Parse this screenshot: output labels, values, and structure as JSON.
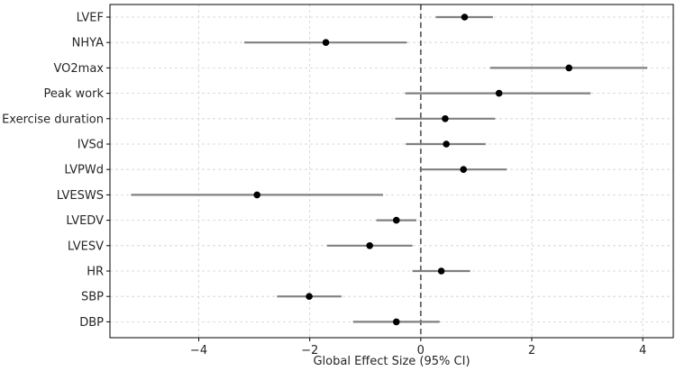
{
  "chart_data": {
    "type": "forest",
    "title": "",
    "xlabel": "Global Effect Size (95% CI)",
    "ylabel": "",
    "xlim": [
      -5.6,
      4.55
    ],
    "xticks": [
      -4,
      -2,
      0,
      2,
      4
    ],
    "xtick_labels": [
      "−4",
      "−2",
      "0",
      "2",
      "4"
    ],
    "grid": true,
    "reference_line": 0,
    "colors": {
      "ci": "#808080",
      "point": "#000000",
      "grid": "#d0d0d0",
      "ref": "#606060",
      "axis": "#000000"
    },
    "categories": [
      "LVEF",
      "NHYA",
      "VO2max",
      "Peak work",
      "Exercise duration",
      "IVSd",
      "LVPWd",
      "LVESWS",
      "LVEDV",
      "LVESV",
      "HR",
      "SBP",
      "DBP"
    ],
    "estimates": [
      0.79,
      -1.71,
      2.67,
      1.41,
      0.44,
      0.46,
      0.77,
      -2.95,
      -0.44,
      -0.92,
      0.37,
      -2.01,
      -0.44
    ],
    "ci_lower": [
      0.27,
      -3.18,
      1.25,
      -0.28,
      -0.46,
      -0.27,
      0.01,
      -5.22,
      -0.8,
      -1.69,
      -0.15,
      -2.59,
      -1.22
    ],
    "ci_upper": [
      1.3,
      -0.25,
      4.08,
      3.06,
      1.34,
      1.17,
      1.55,
      -0.68,
      -0.08,
      -0.15,
      0.89,
      -1.43,
      0.34
    ]
  }
}
